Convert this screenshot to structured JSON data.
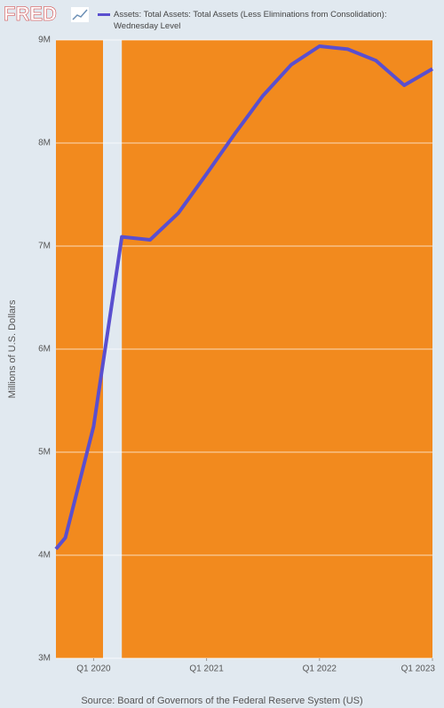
{
  "logo": "FRED",
  "chart_data": {
    "type": "line",
    "title": "Assets: Total Assets: Total Assets (Less Eliminations from Consolidation): Wednesday Level",
    "y_label": "Millions of U.S. Dollars",
    "source": "Source: Board of Governors of the Federal Reserve System (US)",
    "x": [
      "2019-09",
      "2019-10",
      "2020-01",
      "2020-04",
      "2020-07",
      "2020-10",
      "2021-01",
      "2021-04",
      "2021-07",
      "2021-10",
      "2022-01",
      "2022-04",
      "2022-07",
      "2022-10",
      "2023-01"
    ],
    "series": [
      {
        "name": "Assets: Total Assets: Total Assets (Less Eliminations from Consolidation): Wednesday Level",
        "color": "#5a4fcf",
        "values": [
          4060000,
          4170000,
          5250000,
          7090000,
          7060000,
          7320000,
          7700000,
          8090000,
          8460000,
          8760000,
          8940000,
          8910000,
          8800000,
          8560000,
          8720000
        ]
      }
    ],
    "xlim": [
      "2019-09",
      "2023-01"
    ],
    "xticks": [
      {
        "value": "2020-01",
        "label": "Q1 2020"
      },
      {
        "value": "2021-01",
        "label": "Q1 2021"
      },
      {
        "value": "2022-01",
        "label": "Q1 2022"
      },
      {
        "value": "2023-01",
        "label": "Q1 2023"
      }
    ],
    "ylim": [
      3000000,
      9000000
    ],
    "yticks": [
      {
        "value": 3000000,
        "label": "3M"
      },
      {
        "value": 4000000,
        "label": "4M"
      },
      {
        "value": 5000000,
        "label": "5M"
      },
      {
        "value": 6000000,
        "label": "6M"
      },
      {
        "value": 7000000,
        "label": "7M"
      },
      {
        "value": 8000000,
        "label": "8M"
      },
      {
        "value": 9000000,
        "label": "9M"
      }
    ],
    "recessions": [
      {
        "start": "2020-02",
        "end": "2020-04"
      }
    ],
    "plot_color": "#f28a1e",
    "recession_color": "#e1e9f0",
    "grid": true
  }
}
